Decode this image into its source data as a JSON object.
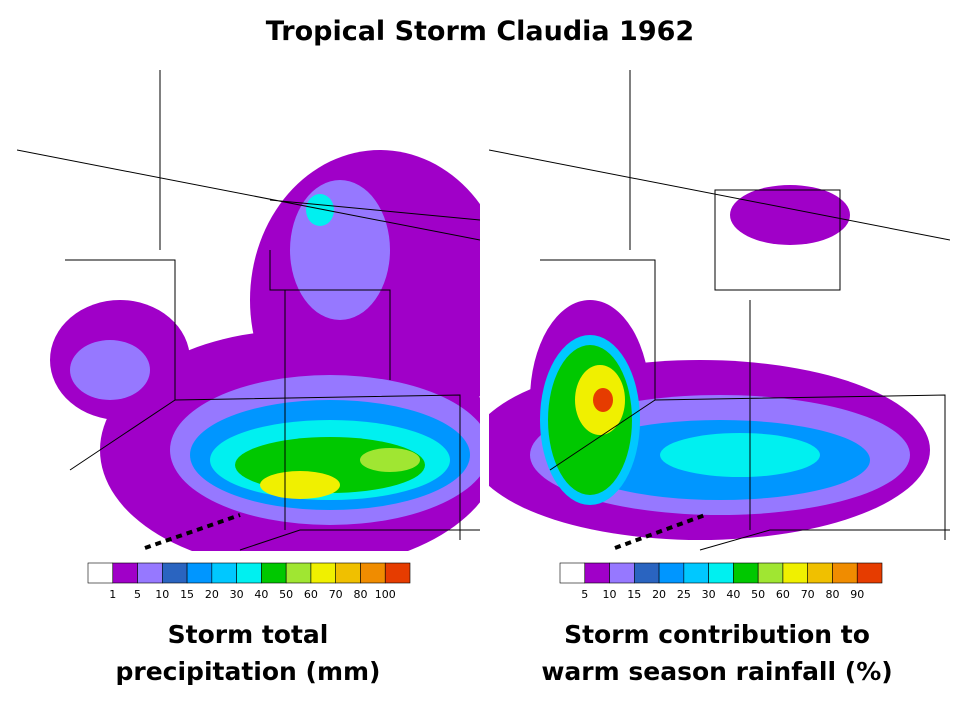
{
  "title": "Tropical Storm Claudia 1962",
  "panels": [
    {
      "caption": [
        "Storm total",
        "precipitation (mm)"
      ],
      "colorbar": {
        "labels": [
          "1",
          "5",
          "10",
          "15",
          "20",
          "30",
          "40",
          "50",
          "60",
          "70",
          "80",
          "100"
        ],
        "colors": [
          "#ffffff",
          "#a000c8",
          "#9678ff",
          "#2a64c0",
          "#0096ff",
          "#00c8ff",
          "#00f0f0",
          "#00c800",
          "#a0e632",
          "#f0f000",
          "#f0c000",
          "#f08c00",
          "#e63c00",
          "#a00000"
        ]
      }
    },
    {
      "caption": [
        "Storm contribution to",
        "warm season rainfall (%)"
      ],
      "colorbar": {
        "labels": [
          "5",
          "10",
          "15",
          "20",
          "25",
          "30",
          "40",
          "50",
          "60",
          "70",
          "80",
          "90"
        ],
        "colors": [
          "#ffffff",
          "#a000c8",
          "#9678ff",
          "#2a64c0",
          "#0096ff",
          "#00c8ff",
          "#00f0f0",
          "#00c800",
          "#a0e632",
          "#f0f000",
          "#f0c000",
          "#f08c00",
          "#e63c00",
          "#a00000"
        ]
      }
    }
  ]
}
